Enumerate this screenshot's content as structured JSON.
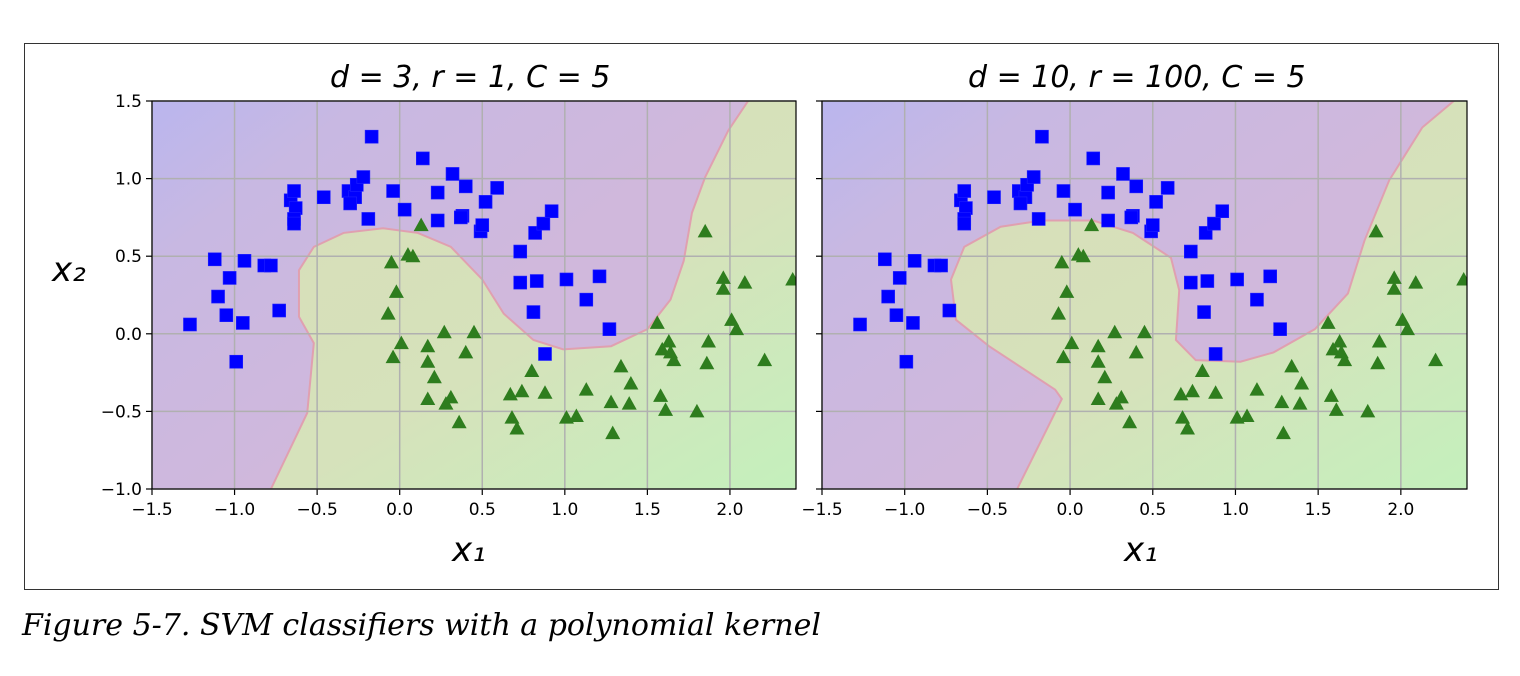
{
  "caption": "Figure 5-7. SVM classifiers with a polynomial kernel",
  "colors": {
    "class0": "#0000ff",
    "class1": "#2e7d1e",
    "region0": "#cdb8de",
    "region1": "#d6e1bb",
    "grid": "#b0b0b0"
  },
  "chart_data": [
    {
      "type": "scatter",
      "title": "d = 3, r = 1, C = 5",
      "xlabel": "x₁",
      "ylabel": "x₂",
      "xlim": [
        -1.5,
        2.4
      ],
      "ylim": [
        -1.0,
        1.5
      ],
      "xticks": [
        "−1.5",
        "−1.0",
        "−0.5",
        "0.0",
        "0.5",
        "1.0",
        "1.5",
        "2.0"
      ],
      "yticks": [
        "−1.0",
        "−0.5",
        "0.0",
        "0.5",
        "1.0",
        "1.5"
      ],
      "grid": true,
      "decision_boundary": [
        [
          -0.78,
          -1.0
        ],
        [
          -0.56,
          -0.51
        ],
        [
          -0.52,
          -0.06
        ],
        [
          -0.61,
          0.11
        ],
        [
          -0.61,
          0.41
        ],
        [
          -0.52,
          0.56
        ],
        [
          -0.34,
          0.65
        ],
        [
          -0.1,
          0.68
        ],
        [
          0.11,
          0.65
        ],
        [
          0.31,
          0.56
        ],
        [
          0.5,
          0.35
        ],
        [
          0.63,
          0.13
        ],
        [
          0.81,
          -0.04
        ],
        [
          0.99,
          -0.1
        ],
        [
          1.28,
          -0.08
        ],
        [
          1.5,
          0.03
        ],
        [
          1.64,
          0.22
        ],
        [
          1.72,
          0.47
        ],
        [
          1.77,
          0.78
        ],
        [
          1.85,
          1.01
        ],
        [
          1.99,
          1.31
        ],
        [
          2.11,
          1.5
        ]
      ]
    },
    {
      "type": "scatter",
      "title": "d = 10, r = 100, C = 5",
      "xlabel": "x₁",
      "ylabel": "",
      "xlim": [
        -1.5,
        2.4
      ],
      "ylim": [
        -1.0,
        1.5
      ],
      "xticks": [
        "−1.5",
        "−1.0",
        "−0.5",
        "0.0",
        "0.5",
        "1.0",
        "1.5",
        "2.0"
      ],
      "yticks": [],
      "grid": true,
      "decision_boundary": [
        [
          -0.32,
          -1.0
        ],
        [
          -0.05,
          -0.42
        ],
        [
          -0.09,
          -0.36
        ],
        [
          -0.49,
          -0.08
        ],
        [
          -0.69,
          0.09
        ],
        [
          -0.72,
          0.35
        ],
        [
          -0.64,
          0.56
        ],
        [
          -0.42,
          0.69
        ],
        [
          -0.17,
          0.73
        ],
        [
          0.14,
          0.73
        ],
        [
          0.38,
          0.65
        ],
        [
          0.61,
          0.49
        ],
        [
          0.66,
          0.28
        ],
        [
          0.64,
          -0.04
        ],
        [
          0.76,
          -0.17
        ],
        [
          1.03,
          -0.18
        ],
        [
          1.23,
          -0.12
        ],
        [
          1.48,
          0.03
        ],
        [
          1.68,
          0.26
        ],
        [
          1.78,
          0.6
        ],
        [
          1.93,
          0.99
        ],
        [
          2.13,
          1.33
        ],
        [
          2.32,
          1.5
        ]
      ]
    }
  ],
  "points": {
    "class0_squares": [
      [
        -1.27,
        0.06
      ],
      [
        -1.12,
        0.48
      ],
      [
        -1.1,
        0.24
      ],
      [
        -1.03,
        0.36
      ],
      [
        -1.05,
        0.12
      ],
      [
        -0.95,
        0.07
      ],
      [
        -0.94,
        0.47
      ],
      [
        -0.99,
        -0.18
      ],
      [
        -0.82,
        0.44
      ],
      [
        -0.78,
        0.44
      ],
      [
        -0.73,
        0.15
      ],
      [
        -0.66,
        0.86
      ],
      [
        -0.64,
        0.92
      ],
      [
        -0.63,
        0.81
      ],
      [
        -0.64,
        0.74
      ],
      [
        -0.64,
        0.71
      ],
      [
        -0.46,
        0.88
      ],
      [
        -0.31,
        0.92
      ],
      [
        -0.27,
        0.88
      ],
      [
        -0.3,
        0.84
      ],
      [
        -0.26,
        0.96
      ],
      [
        -0.22,
        1.01
      ],
      [
        -0.19,
        0.74
      ],
      [
        -0.17,
        1.27
      ],
      [
        -0.04,
        0.92
      ],
      [
        0.03,
        0.8
      ],
      [
        0.14,
        1.13
      ],
      [
        0.23,
        0.91
      ],
      [
        0.23,
        0.73
      ],
      [
        0.32,
        1.03
      ],
      [
        0.38,
        0.76
      ],
      [
        0.4,
        0.95
      ],
      [
        0.37,
        0.75
      ],
      [
        0.49,
        0.66
      ],
      [
        0.5,
        0.7
      ],
      [
        0.52,
        0.85
      ],
      [
        0.59,
        0.94
      ],
      [
        0.73,
        0.53
      ],
      [
        0.73,
        0.33
      ],
      [
        0.83,
        0.34
      ],
      [
        0.82,
        0.65
      ],
      [
        0.87,
        0.71
      ],
      [
        0.92,
        0.79
      ],
      [
        0.81,
        0.14
      ],
      [
        0.88,
        -0.13
      ],
      [
        1.01,
        0.35
      ],
      [
        1.13,
        0.22
      ],
      [
        1.21,
        0.37
      ],
      [
        1.27,
        0.03
      ]
    ],
    "class1_triangles": [
      [
        0.13,
        0.7
      ],
      [
        0.05,
        0.51
      ],
      [
        0.08,
        0.5
      ],
      [
        -0.05,
        0.46
      ],
      [
        -0.02,
        0.27
      ],
      [
        -0.07,
        0.13
      ],
      [
        0.27,
        0.01
      ],
      [
        0.45,
        0.01
      ],
      [
        0.01,
        -0.06
      ],
      [
        0.17,
        -0.08
      ],
      [
        0.4,
        -0.12
      ],
      [
        -0.04,
        -0.15
      ],
      [
        0.17,
        -0.18
      ],
      [
        0.21,
        -0.28
      ],
      [
        0.17,
        -0.42
      ],
      [
        0.31,
        -0.41
      ],
      [
        0.28,
        -0.45
      ],
      [
        0.36,
        -0.57
      ],
      [
        1.85,
        0.66
      ],
      [
        1.96,
        0.36
      ],
      [
        1.96,
        0.29
      ],
      [
        2.09,
        0.33
      ],
      [
        2.38,
        0.35
      ],
      [
        2.01,
        0.09
      ],
      [
        2.04,
        0.03
      ],
      [
        1.56,
        0.07
      ],
      [
        1.63,
        -0.05
      ],
      [
        1.59,
        -0.1
      ],
      [
        1.64,
        -0.12
      ],
      [
        1.66,
        -0.17
      ],
      [
        1.87,
        -0.05
      ],
      [
        1.86,
        -0.19
      ],
      [
        2.21,
        -0.17
      ],
      [
        1.34,
        -0.21
      ],
      [
        1.4,
        -0.32
      ],
      [
        1.13,
        -0.36
      ],
      [
        1.28,
        -0.44
      ],
      [
        1.39,
        -0.45
      ],
      [
        1.58,
        -0.4
      ],
      [
        1.61,
        -0.49
      ],
      [
        1.8,
        -0.5
      ],
      [
        0.8,
        -0.24
      ],
      [
        0.67,
        -0.39
      ],
      [
        0.74,
        -0.37
      ],
      [
        0.88,
        -0.38
      ],
      [
        0.68,
        -0.54
      ],
      [
        0.71,
        -0.61
      ],
      [
        1.01,
        -0.54
      ],
      [
        1.07,
        -0.53
      ],
      [
        1.29,
        -0.64
      ]
    ]
  }
}
